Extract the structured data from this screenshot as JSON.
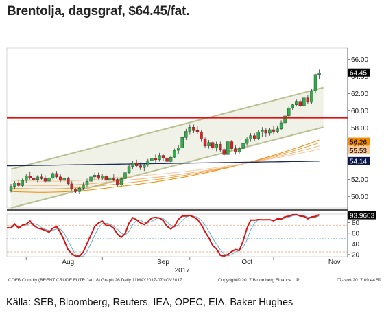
{
  "title": "Brentolja, dagsgraf, $64.45/fat.",
  "source": "Källa: SEB, Bloomberg, Reuters, IEA, OPEC, EIA, Baker Hughes",
  "footer": {
    "left": "COFB Comdty (BRENT CRUDE FUTR  Jan18) Graph 26  Daily 11MAY2017-07NOV2017",
    "mid": "Copyright© 2017 Bloomberg Finance L.P.",
    "right": "07-Nov-2017 09:44:59"
  },
  "chart_data": [
    {
      "type": "candlestick",
      "ylim": [
        48.7,
        67.3
      ],
      "y_ticks": [
        "66.00",
        "64.00",
        "62.00",
        "60.00",
        "58.00",
        "56.00",
        "54.00",
        "52.00",
        "50.00"
      ],
      "x_ticks": [
        "Aug",
        "Sep",
        "Oct",
        "Nov"
      ],
      "x_year_label": "2017",
      "colors": {
        "up": "#2bb34a",
        "down": "#e02020"
      },
      "candles": [
        [
          50.7,
          51.5,
          50.5,
          51.2
        ],
        [
          51.2,
          51.8,
          50.9,
          51.6
        ],
        [
          51.6,
          52.0,
          51.1,
          51.3
        ],
        [
          51.3,
          52.1,
          51.1,
          51.9
        ],
        [
          51.9,
          52.6,
          51.6,
          52.4
        ],
        [
          52.4,
          52.9,
          52.0,
          52.2
        ],
        [
          52.2,
          52.6,
          51.8,
          52.0
        ],
        [
          52.0,
          52.5,
          51.7,
          52.3
        ],
        [
          52.3,
          52.7,
          51.9,
          52.1
        ],
        [
          52.1,
          52.5,
          51.6,
          51.8
        ],
        [
          51.8,
          52.4,
          51.4,
          52.2
        ],
        [
          52.2,
          52.9,
          52.0,
          52.7
        ],
        [
          52.7,
          53.0,
          52.1,
          52.3
        ],
        [
          52.3,
          52.6,
          51.7,
          51.9
        ],
        [
          51.9,
          52.3,
          51.5,
          52.1
        ],
        [
          52.1,
          52.3,
          51.3,
          51.5
        ],
        [
          51.5,
          51.8,
          50.7,
          50.9
        ],
        [
          50.9,
          51.0,
          50.4,
          50.6
        ],
        [
          50.6,
          51.2,
          50.3,
          51.0
        ],
        [
          51.0,
          51.7,
          50.8,
          51.4
        ],
        [
          51.4,
          52.1,
          51.1,
          51.8
        ],
        [
          51.8,
          52.6,
          51.5,
          52.3
        ],
        [
          52.3,
          52.8,
          51.9,
          52.5
        ],
        [
          52.5,
          52.8,
          52.0,
          52.2
        ],
        [
          52.2,
          52.6,
          51.9,
          52.4
        ],
        [
          52.4,
          52.7,
          51.7,
          51.9
        ],
        [
          51.9,
          52.4,
          51.6,
          52.2
        ],
        [
          52.2,
          52.6,
          51.8,
          52.0
        ],
        [
          52.0,
          52.2,
          51.2,
          51.4
        ],
        [
          51.4,
          52.3,
          51.2,
          52.1
        ],
        [
          52.1,
          53.0,
          51.9,
          52.8
        ],
        [
          52.8,
          53.8,
          52.6,
          53.5
        ],
        [
          53.5,
          54.2,
          53.2,
          53.9
        ],
        [
          53.9,
          54.3,
          53.4,
          53.6
        ],
        [
          53.6,
          54.0,
          53.1,
          53.4
        ],
        [
          53.4,
          53.9,
          53.0,
          53.7
        ],
        [
          53.7,
          54.4,
          53.5,
          54.2
        ],
        [
          54.2,
          54.8,
          53.9,
          54.5
        ],
        [
          54.5,
          54.9,
          54.0,
          54.3
        ],
        [
          54.3,
          55.1,
          54.1,
          54.8
        ],
        [
          54.8,
          55.0,
          54.2,
          54.5
        ],
        [
          54.5,
          54.9,
          53.8,
          54.1
        ],
        [
          54.1,
          54.8,
          53.9,
          54.6
        ],
        [
          54.6,
          55.6,
          54.5,
          55.4
        ],
        [
          55.4,
          56.0,
          55.0,
          55.7
        ],
        [
          55.7,
          57.1,
          55.6,
          56.9
        ],
        [
          56.9,
          57.9,
          56.6,
          57.6
        ],
        [
          57.6,
          58.4,
          57.2,
          58.1
        ],
        [
          58.1,
          58.4,
          57.4,
          57.7
        ],
        [
          57.7,
          58.2,
          57.3,
          57.5
        ],
        [
          57.5,
          57.7,
          56.4,
          56.7
        ],
        [
          56.7,
          56.9,
          55.7,
          55.9
        ],
        [
          55.9,
          56.6,
          55.6,
          56.3
        ],
        [
          56.3,
          56.5,
          55.5,
          55.7
        ],
        [
          55.7,
          56.4,
          55.3,
          56.1
        ],
        [
          56.1,
          56.4,
          55.2,
          55.5
        ],
        [
          55.5,
          55.7,
          54.7,
          54.9
        ],
        [
          54.9,
          56.6,
          54.8,
          56.4
        ],
        [
          56.4,
          56.6,
          55.4,
          55.6
        ],
        [
          55.6,
          56.0,
          54.9,
          55.2
        ],
        [
          55.2,
          55.8,
          55.0,
          55.6
        ],
        [
          55.6,
          56.5,
          55.4,
          56.2
        ],
        [
          56.2,
          57.0,
          55.9,
          56.7
        ],
        [
          56.7,
          57.4,
          56.4,
          57.1
        ],
        [
          57.1,
          57.4,
          56.5,
          56.8
        ],
        [
          56.8,
          57.8,
          56.6,
          57.5
        ],
        [
          57.5,
          58.1,
          57.0,
          57.7
        ],
        [
          57.7,
          58.0,
          57.0,
          57.4
        ],
        [
          57.4,
          58.0,
          57.1,
          57.8
        ],
        [
          57.8,
          58.2,
          57.3,
          57.6
        ],
        [
          57.6,
          58.2,
          57.4,
          57.9
        ],
        [
          57.9,
          58.9,
          57.8,
          58.6
        ],
        [
          58.6,
          59.6,
          58.4,
          59.4
        ],
        [
          59.4,
          60.6,
          59.2,
          60.3
        ],
        [
          60.3,
          60.8,
          60.1,
          60.7
        ],
        [
          60.7,
          61.3,
          60.5,
          61.1
        ],
        [
          61.1,
          61.3,
          60.4,
          60.6
        ],
        [
          60.6,
          61.7,
          60.2,
          61.5
        ],
        [
          61.5,
          61.8,
          60.8,
          61.0
        ],
        [
          61.0,
          62.6,
          60.8,
          62.3
        ],
        [
          62.3,
          64.3,
          62.0,
          64.2
        ],
        [
          64.2,
          64.8,
          63.7,
          64.4
        ]
      ],
      "price_label": "64.45",
      "horizontal_line": 59.2,
      "side_labels": [
        "64.45",
        "56.26",
        "55.53",
        "54.14"
      ],
      "moving_average_labels": [
        "56.26",
        "55.53",
        "54.14"
      ],
      "channel_upper": [
        [
          0,
          53.2
        ],
        [
          81,
          62.7
        ]
      ],
      "channel_lower": [
        [
          0,
          48.7
        ],
        [
          81,
          58.1
        ]
      ],
      "ma_lines_end": [
        56.6,
        56.26,
        55.9,
        55.53
      ],
      "ma_long_start": 53.6,
      "ma_long_end": 54.14
    },
    {
      "type": "line",
      "name": "",
      "ylim": [
        16,
        96
      ],
      "y_ticks": [
        "80",
        "60",
        "40",
        "20"
      ],
      "reference_lines": [
        75,
        25
      ],
      "value_label": "93.9603",
      "series_colors": {
        "k": "#dd1111",
        "d": "#5ab0c8"
      }
    }
  ],
  "colors": {
    "green_up": "#2bb34a",
    "red_down": "#e02020",
    "resistance": "#dd1111",
    "channel": "#b9c08f",
    "badge": "#000000",
    "orange_badge": "#f08a00"
  }
}
